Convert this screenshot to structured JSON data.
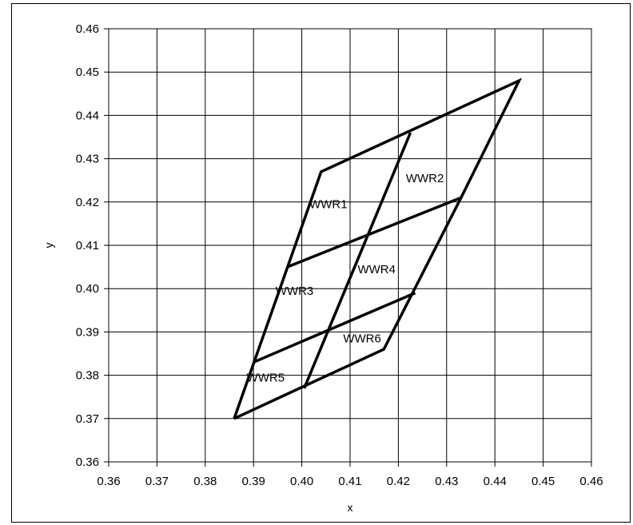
{
  "chart_data": {
    "type": "line",
    "title": "",
    "xlabel": "x",
    "ylabel": "y",
    "xlim": [
      0.36,
      0.46
    ],
    "ylim": [
      0.36,
      0.46
    ],
    "x_ticks": [
      0.36,
      0.37,
      0.38,
      0.39,
      0.4,
      0.41,
      0.42,
      0.43,
      0.44,
      0.45,
      0.46
    ],
    "y_ticks": [
      0.36,
      0.37,
      0.38,
      0.39,
      0.4,
      0.41,
      0.42,
      0.43,
      0.44,
      0.45,
      0.46
    ],
    "x_tick_labels": [
      "0.36",
      "0.37",
      "0.38",
      "0.39",
      "0.40",
      "0.41",
      "0.42",
      "0.43",
      "0.44",
      "0.45",
      "0.46"
    ],
    "y_tick_labels": [
      "0.36",
      "0.37",
      "0.38",
      "0.39",
      "0.40",
      "0.41",
      "0.42",
      "0.43",
      "0.44",
      "0.45",
      "0.46"
    ],
    "grid": true,
    "line_color": "#000000",
    "lines": [
      {
        "x": [
          0.386,
          0.404,
          0.445,
          0.433,
          0.417,
          0.386
        ],
        "y": [
          0.37,
          0.427,
          0.448,
          0.421,
          0.386,
          0.37
        ]
      },
      {
        "x": [
          0.397,
          0.433
        ],
        "y": [
          0.405,
          0.421
        ]
      },
      {
        "x": [
          0.39,
          0.4235
        ],
        "y": [
          0.383,
          0.399
        ]
      },
      {
        "x": [
          0.4225,
          0.4005
        ],
        "y": [
          0.436,
          0.377
        ]
      }
    ],
    "region_labels": [
      {
        "text": "WWR1",
        "x": 0.4055,
        "y": 0.4195
      },
      {
        "text": "WWR2",
        "x": 0.4255,
        "y": 0.4255
      },
      {
        "text": "WWR3",
        "x": 0.3985,
        "y": 0.3995
      },
      {
        "text": "WWR4",
        "x": 0.4155,
        "y": 0.4045
      },
      {
        "text": "WWR5",
        "x": 0.3925,
        "y": 0.3795
      },
      {
        "text": "WWR6",
        "x": 0.4125,
        "y": 0.3885
      }
    ]
  }
}
